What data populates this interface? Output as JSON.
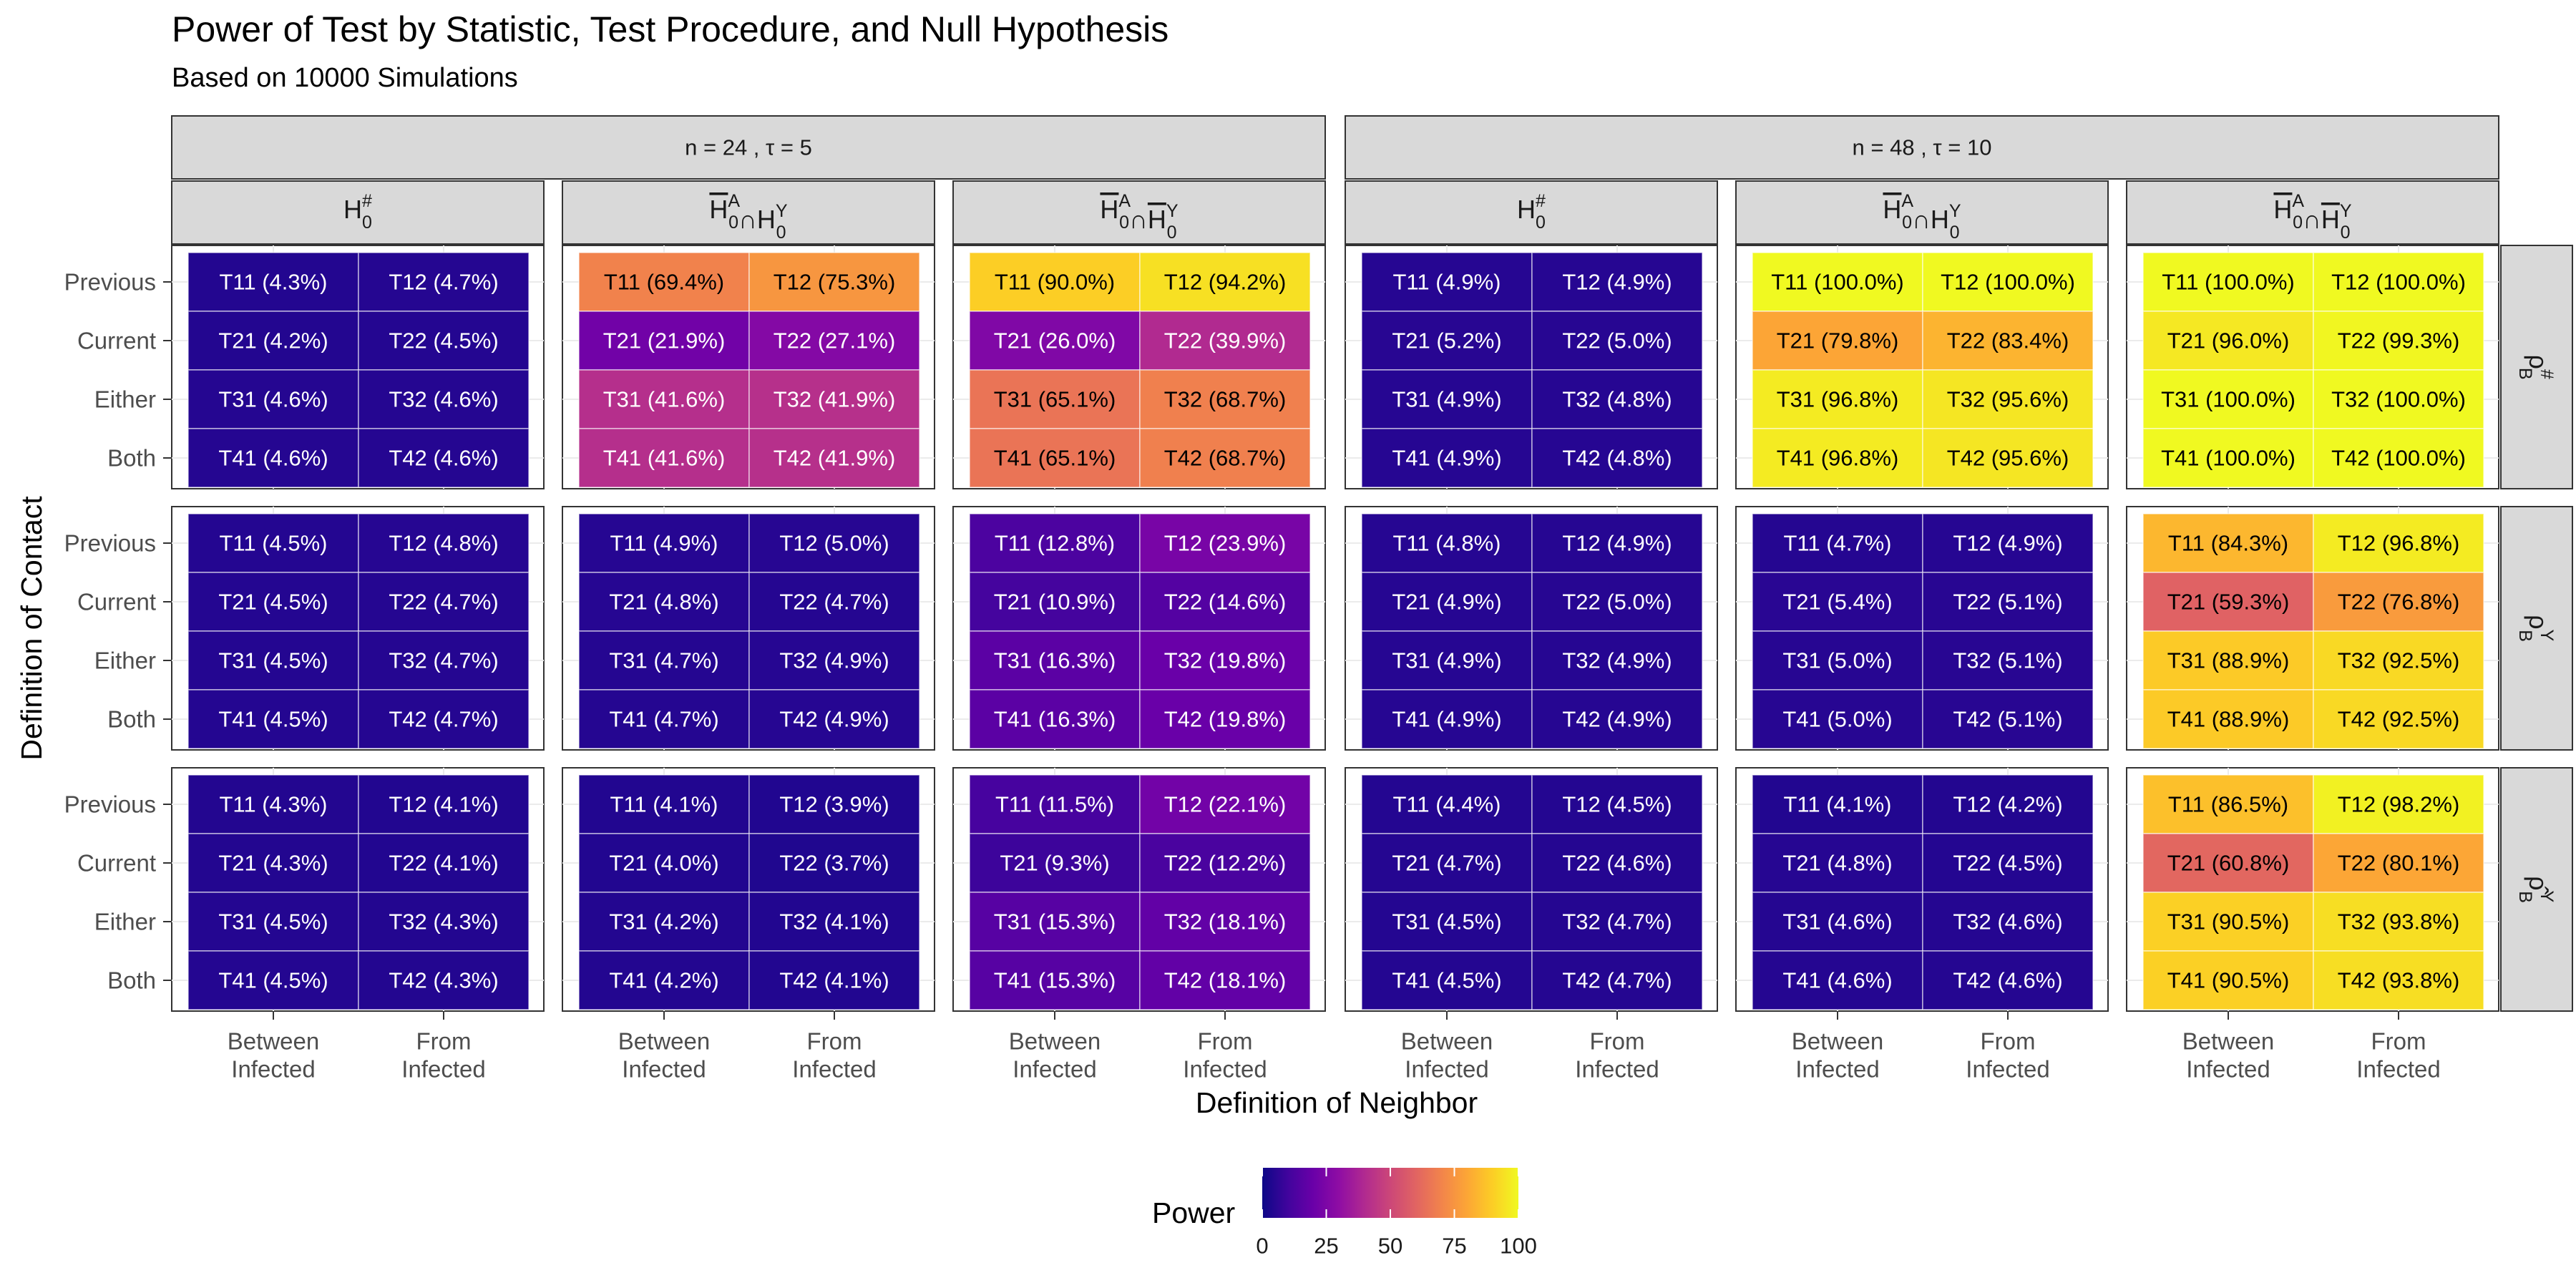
{
  "title": "Power of Test by Statistic, Test Procedure, and Null Hypothesis",
  "subtitle": "Based on 10000 Simulations",
  "chart_data": {
    "type": "heatmap",
    "title": "Power of Test by Statistic, Test Procedure, and Null Hypothesis",
    "subtitle": "Based on 10000 Simulations",
    "xlabel": "Definition of Neighbor",
    "ylabel": "Definition of Contact",
    "x_categories": [
      "Between\nInfected",
      "From\nInfected"
    ],
    "y_categories": [
      "Previous",
      "Current",
      "Either",
      "Both"
    ],
    "column_groups": [
      "n = 24 , τ = 5",
      "n = 48 , τ = 10"
    ],
    "column_facets": [
      {
        "group": 0,
        "label": "H₀#"
      },
      {
        "group": 0,
        "label": "H̅₀A∩H₀Y"
      },
      {
        "group": 0,
        "label": "H̅₀A∩H̅₀Y"
      },
      {
        "group": 1,
        "label": "H₀#"
      },
      {
        "group": 1,
        "label": "H̅₀A∩H₀Y"
      },
      {
        "group": 1,
        "label": "H̅₀A∩H̅₀Y"
      }
    ],
    "row_facets": [
      "ρB#",
      "ρBY",
      "ρ̂BY"
    ],
    "legend": {
      "title": "Power",
      "ticks": [
        0,
        25,
        50,
        75,
        100
      ],
      "range": [
        0,
        100
      ],
      "position": "bottom",
      "colorscale": "plasma"
    },
    "grid": true,
    "panels": [
      [
        {
          "labels": [
            [
              "T11",
              "T12"
            ],
            [
              "T21",
              "T22"
            ],
            [
              "T31",
              "T32"
            ],
            [
              "T41",
              "T42"
            ]
          ],
          "values": [
            [
              4.3,
              4.7
            ],
            [
              4.2,
              4.5
            ],
            [
              4.6,
              4.6
            ],
            [
              4.6,
              4.6
            ]
          ]
        },
        {
          "labels": [
            [
              "T11",
              "T12"
            ],
            [
              "T21",
              "T22"
            ],
            [
              "T31",
              "T32"
            ],
            [
              "T41",
              "T42"
            ]
          ],
          "values": [
            [
              69.4,
              75.3
            ],
            [
              21.9,
              27.1
            ],
            [
              41.6,
              41.9
            ],
            [
              41.6,
              41.9
            ]
          ]
        },
        {
          "labels": [
            [
              "T11",
              "T12"
            ],
            [
              "T21",
              "T22"
            ],
            [
              "T31",
              "T32"
            ],
            [
              "T41",
              "T42"
            ]
          ],
          "values": [
            [
              90.0,
              94.2
            ],
            [
              26.0,
              39.9
            ],
            [
              65.1,
              68.7
            ],
            [
              65.1,
              68.7
            ]
          ]
        },
        {
          "labels": [
            [
              "T11",
              "T12"
            ],
            [
              "T21",
              "T22"
            ],
            [
              "T31",
              "T32"
            ],
            [
              "T41",
              "T42"
            ]
          ],
          "values": [
            [
              4.9,
              4.9
            ],
            [
              5.2,
              5.0
            ],
            [
              4.9,
              4.8
            ],
            [
              4.9,
              4.8
            ]
          ]
        },
        {
          "labels": [
            [
              "T11",
              "T12"
            ],
            [
              "T21",
              "T22"
            ],
            [
              "T31",
              "T32"
            ],
            [
              "T41",
              "T42"
            ]
          ],
          "values": [
            [
              100.0,
              100.0
            ],
            [
              79.8,
              83.4
            ],
            [
              96.8,
              95.6
            ],
            [
              96.8,
              95.6
            ]
          ]
        },
        {
          "labels": [
            [
              "T11",
              "T12"
            ],
            [
              "T21",
              "T22"
            ],
            [
              "T31",
              "T32"
            ],
            [
              "T41",
              "T42"
            ]
          ],
          "values": [
            [
              100.0,
              100.0
            ],
            [
              96.0,
              99.3
            ],
            [
              100.0,
              100.0
            ],
            [
              100.0,
              100.0
            ]
          ]
        }
      ],
      [
        {
          "labels": [
            [
              "T11",
              "T12"
            ],
            [
              "T21",
              "T22"
            ],
            [
              "T31",
              "T32"
            ],
            [
              "T41",
              "T42"
            ]
          ],
          "values": [
            [
              4.5,
              4.8
            ],
            [
              4.5,
              4.7
            ],
            [
              4.5,
              4.7
            ],
            [
              4.5,
              4.7
            ]
          ]
        },
        {
          "labels": [
            [
              "T11",
              "T12"
            ],
            [
              "T21",
              "T22"
            ],
            [
              "T31",
              "T32"
            ],
            [
              "T41",
              "T42"
            ]
          ],
          "values": [
            [
              4.9,
              5.0
            ],
            [
              4.8,
              4.7
            ],
            [
              4.7,
              4.9
            ],
            [
              4.7,
              4.9
            ]
          ]
        },
        {
          "labels": [
            [
              "T11",
              "T12"
            ],
            [
              "T21",
              "T22"
            ],
            [
              "T31",
              "T32"
            ],
            [
              "T41",
              "T42"
            ]
          ],
          "values": [
            [
              12.8,
              23.9
            ],
            [
              10.9,
              14.6
            ],
            [
              16.3,
              19.8
            ],
            [
              16.3,
              19.8
            ]
          ]
        },
        {
          "labels": [
            [
              "T11",
              "T12"
            ],
            [
              "T21",
              "T22"
            ],
            [
              "T31",
              "T32"
            ],
            [
              "T41",
              "T42"
            ]
          ],
          "values": [
            [
              4.8,
              4.9
            ],
            [
              4.9,
              5.0
            ],
            [
              4.9,
              4.9
            ],
            [
              4.9,
              4.9
            ]
          ]
        },
        {
          "labels": [
            [
              "T11",
              "T12"
            ],
            [
              "T21",
              "T22"
            ],
            [
              "T31",
              "T32"
            ],
            [
              "T41",
              "T42"
            ]
          ],
          "values": [
            [
              4.7,
              4.9
            ],
            [
              5.4,
              5.1
            ],
            [
              5.0,
              5.1
            ],
            [
              5.0,
              5.1
            ]
          ]
        },
        {
          "labels": [
            [
              "T11",
              "T12"
            ],
            [
              "T21",
              "T22"
            ],
            [
              "T31",
              "T32"
            ],
            [
              "T41",
              "T42"
            ]
          ],
          "values": [
            [
              84.3,
              96.8
            ],
            [
              59.3,
              76.8
            ],
            [
              88.9,
              92.5
            ],
            [
              88.9,
              92.5
            ]
          ]
        }
      ],
      [
        {
          "labels": [
            [
              "T11",
              "T12"
            ],
            [
              "T21",
              "T22"
            ],
            [
              "T31",
              "T32"
            ],
            [
              "T41",
              "T42"
            ]
          ],
          "values": [
            [
              4.3,
              4.1
            ],
            [
              4.3,
              4.1
            ],
            [
              4.5,
              4.3
            ],
            [
              4.5,
              4.3
            ]
          ]
        },
        {
          "labels": [
            [
              "T11",
              "T12"
            ],
            [
              "T21",
              "T22"
            ],
            [
              "T31",
              "T32"
            ],
            [
              "T41",
              "T42"
            ]
          ],
          "values": [
            [
              4.1,
              3.9
            ],
            [
              4.0,
              3.7
            ],
            [
              4.2,
              4.1
            ],
            [
              4.2,
              4.1
            ]
          ]
        },
        {
          "labels": [
            [
              "T11",
              "T12"
            ],
            [
              "T21",
              "T22"
            ],
            [
              "T31",
              "T32"
            ],
            [
              "T41",
              "T42"
            ]
          ],
          "values": [
            [
              11.5,
              22.1
            ],
            [
              9.3,
              12.2
            ],
            [
              15.3,
              18.1
            ],
            [
              15.3,
              18.1
            ]
          ]
        },
        {
          "labels": [
            [
              "T11",
              "T12"
            ],
            [
              "T21",
              "T22"
            ],
            [
              "T31",
              "T32"
            ],
            [
              "T41",
              "T42"
            ]
          ],
          "values": [
            [
              4.4,
              4.5
            ],
            [
              4.7,
              4.6
            ],
            [
              4.5,
              4.7
            ],
            [
              4.5,
              4.7
            ]
          ]
        },
        {
          "labels": [
            [
              "T11",
              "T12"
            ],
            [
              "T21",
              "T22"
            ],
            [
              "T31",
              "T32"
            ],
            [
              "T41",
              "T42"
            ]
          ],
          "values": [
            [
              4.1,
              4.2
            ],
            [
              4.8,
              4.5
            ],
            [
              4.6,
              4.6
            ],
            [
              4.6,
              4.6
            ]
          ]
        },
        {
          "labels": [
            [
              "T11",
              "T12"
            ],
            [
              "T21",
              "T22"
            ],
            [
              "T31",
              "T32"
            ],
            [
              "T41",
              "T42"
            ]
          ],
          "values": [
            [
              86.5,
              98.2
            ],
            [
              60.8,
              80.1
            ],
            [
              90.5,
              93.8
            ],
            [
              90.5,
              93.8
            ]
          ]
        }
      ]
    ]
  }
}
